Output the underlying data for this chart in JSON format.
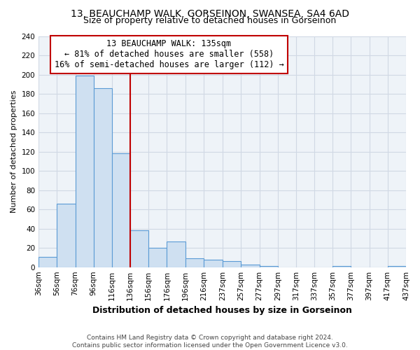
{
  "title": "13, BEAUCHAMP WALK, GORSEINON, SWANSEA, SA4 6AD",
  "subtitle": "Size of property relative to detached houses in Gorseinon",
  "xlabel": "Distribution of detached houses by size in Gorseinon",
  "ylabel": "Number of detached properties",
  "bin_edges": [
    36,
    56,
    76,
    96,
    116,
    136,
    156,
    176,
    196,
    216,
    237,
    257,
    277,
    297,
    317,
    337,
    357,
    377,
    397,
    417,
    437
  ],
  "bin_labels": [
    "36sqm",
    "56sqm",
    "76sqm",
    "96sqm",
    "116sqm",
    "136sqm",
    "156sqm",
    "176sqm",
    "196sqm",
    "216sqm",
    "237sqm",
    "257sqm",
    "277sqm",
    "297sqm",
    "317sqm",
    "337sqm",
    "357sqm",
    "377sqm",
    "397sqm",
    "417sqm",
    "437sqm"
  ],
  "counts": [
    11,
    66,
    199,
    186,
    118,
    38,
    20,
    27,
    9,
    8,
    6,
    3,
    1,
    0,
    0,
    0,
    1,
    0,
    0,
    1
  ],
  "bar_color": "#cfe0f1",
  "bar_edge_color": "#5b9bd5",
  "property_line_x": 136,
  "property_line_color": "#c00000",
  "annotation_line1": "13 BEAUCHAMP WALK: 135sqm",
  "annotation_line2": "← 81% of detached houses are smaller (558)",
  "annotation_line3": "16% of semi-detached houses are larger (112) →",
  "annotation_box_color": "#ffffff",
  "annotation_box_edge_color": "#c00000",
  "ylim": [
    0,
    240
  ],
  "yticks": [
    0,
    20,
    40,
    60,
    80,
    100,
    120,
    140,
    160,
    180,
    200,
    220,
    240
  ],
  "footer_line1": "Contains HM Land Registry data © Crown copyright and database right 2024.",
  "footer_line2": "Contains public sector information licensed under the Open Government Licence v3.0.",
  "title_fontsize": 10,
  "subtitle_fontsize": 9,
  "xlabel_fontsize": 9,
  "ylabel_fontsize": 8,
  "tick_fontsize": 7.5,
  "annotation_fontsize": 8.5,
  "footer_fontsize": 6.5,
  "background_color": "#ffffff",
  "grid_color": "#d0d8e4",
  "plot_bg_color": "#eef3f8"
}
